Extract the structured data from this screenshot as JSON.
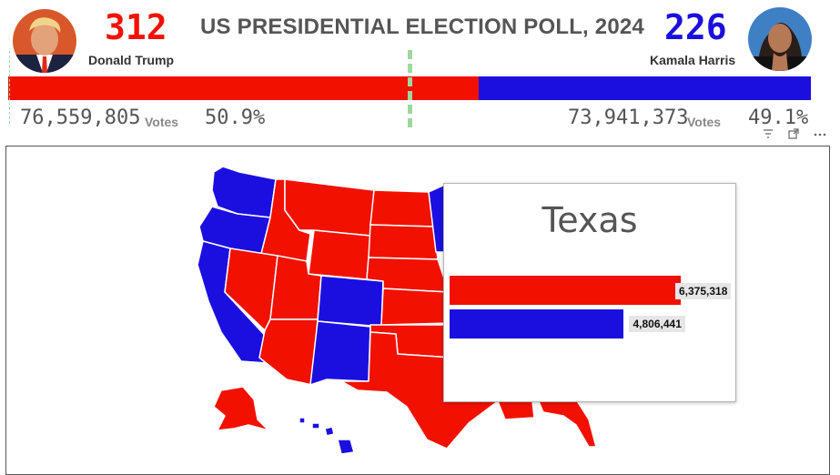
{
  "header": {
    "title": "US PRESIDENTIAL ELECTION POLL, 2024"
  },
  "candidates": {
    "left": {
      "name": "Donald Trump",
      "electoral_votes": "312",
      "popular_votes": "76,559,805",
      "votes_label": "Votes",
      "percent": "50.9%",
      "color": "#f21100",
      "avatar": "trump-photo"
    },
    "right": {
      "name": "Kamala Harris",
      "electoral_votes": "226",
      "popular_votes": "73,941,373",
      "votes_label": "Votes",
      "percent": "49.1%",
      "color": "#1b0fe0",
      "avatar": "harris-photo"
    }
  },
  "progress": {
    "left_share": 0.5866
  },
  "toolbar": {
    "icons": [
      "filter-icon",
      "focus-mode-icon",
      "more-options-icon"
    ]
  },
  "map": {
    "colors": {
      "rep": "#f21100",
      "dem": "#1b0fe0"
    }
  },
  "tooltip": {
    "state": "Texas",
    "rep_votes": "6,375,318",
    "dem_votes": "4,806,441",
    "rep_value": 6375318,
    "dem_value": 4806441
  }
}
